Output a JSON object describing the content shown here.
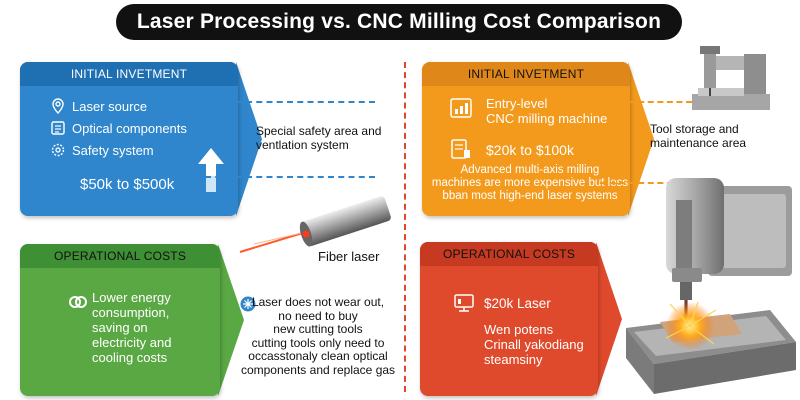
{
  "title": "Laser Processing vs. CNC Milling Cost Comparison",
  "colors": {
    "blue": "#2f86cc",
    "blue_head": "#1f6fb3",
    "orange": "#f39a1c",
    "orange_head": "#e0871a",
    "green": "#5aa844",
    "green_head": "#3f8f34",
    "red": "#e04a2c",
    "red_head": "#c63a22",
    "title_bg": "#111111"
  },
  "laser": {
    "initial": {
      "header": "INITIAL INVETMENT",
      "items": [
        "Laser source",
        "Optical components",
        "Safety system"
      ],
      "icons": [
        "location-pin-icon",
        "document-icon",
        "gear-icon"
      ],
      "price": "$50k to $500k"
    },
    "note_safety": "Special safety area and\nventlation system",
    "fiber_label": "Fiber laser",
    "operational": {
      "header": "OPERATIONAL COSTS",
      "text": "Lower energy\nconsumption,\nsaving on\nelectricity and\ncooling costs",
      "icon": "link-icon"
    },
    "note_wear": "Laser does not wear out,\nno need to buy\nnew cutting tools\ncutting tools only need to\noccasstonaly clean optical\ncomponents and replace gas"
  },
  "cnc": {
    "initial": {
      "header": "INITIAL INVETMENT",
      "entry": "Entry-level\nCNC milling machine",
      "price": "$20k to $100k",
      "advanced": "Advanced multi-axis milling\nmachines are more expensive but less\nbban most high-end laser systems"
    },
    "note_storage": "Tool storage and\nmaintenance area",
    "operational": {
      "header": "OPERATIONAL COSTS",
      "price": "$20k Laser",
      "text": "Wen potens\nCrinall yakodiang\nsteamsiny"
    }
  }
}
